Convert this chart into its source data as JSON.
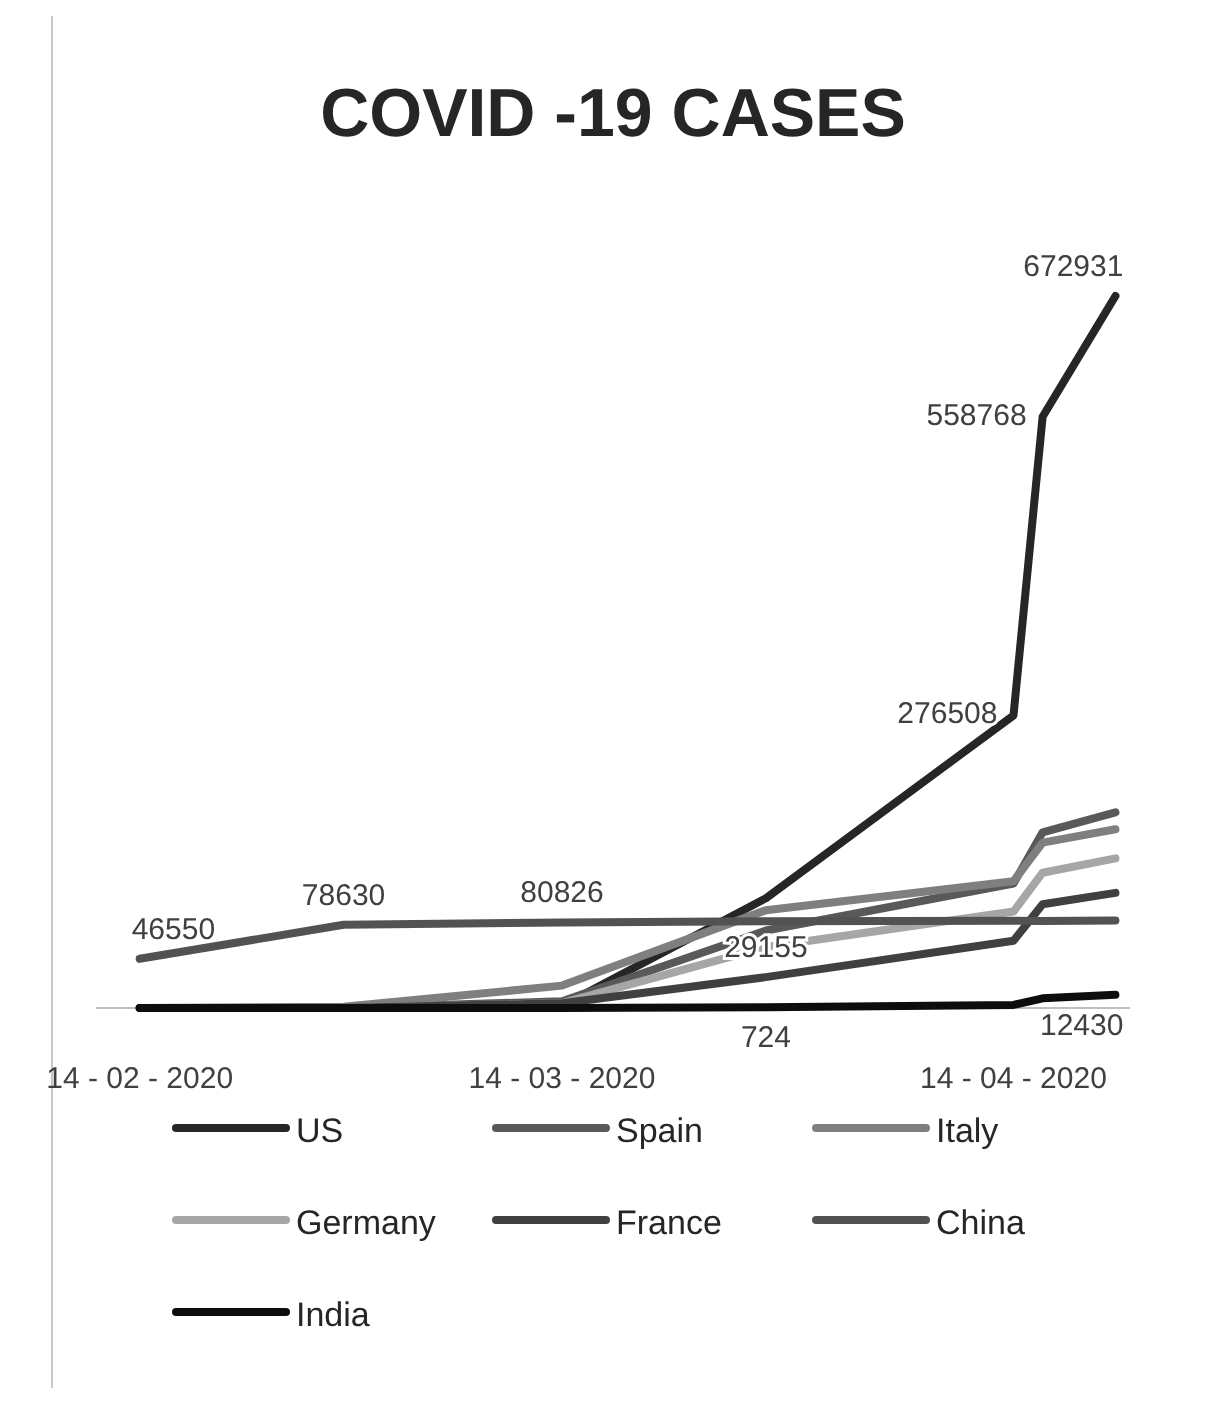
{
  "chart_data": {
    "type": "line",
    "title": "COVID -19 CASES",
    "x": [
      "2020-02-14",
      "2020-02-28",
      "2020-03-14",
      "2020-03-28",
      "2020-04-14",
      "2020-04-16",
      "2020-04-21"
    ],
    "xlim": [
      "2020-02-11",
      "2020-04-22"
    ],
    "xticks": [
      {
        "value": "2020-02-14",
        "label": "14 - 02 - 2020"
      },
      {
        "value": "2020-03-14",
        "label": "14 - 03 - 2020"
      },
      {
        "value": "2020-04-14",
        "label": "14 - 04 - 2020"
      }
    ],
    "series": [
      {
        "name": "US",
        "color": "#262626",
        "values": [
          15,
          62,
          2174,
          103798,
          276508,
          558768,
          672931
        ],
        "value_labels": [
          null,
          null,
          null,
          null,
          "276508",
          "558768",
          "672931"
        ]
      },
      {
        "name": "Spain",
        "color": "#595959",
        "values": [
          2,
          45,
          6391,
          73235,
          117710,
          166019,
          184948
        ]
      },
      {
        "name": "Italy",
        "color": "#7f7f7f",
        "values": [
          3,
          1128,
          21157,
          92472,
          119827,
          156363,
          168941
        ]
      },
      {
        "name": "Germany",
        "color": "#a6a6a6",
        "values": [
          16,
          79,
          4585,
          57695,
          91159,
          127854,
          141397
        ]
      },
      {
        "name": "France",
        "color": "#404040",
        "values": [
          11,
          100,
          4499,
          29155,
          63633,
          98076,
          108847
        ],
        "value_labels": [
          null,
          null,
          null,
          "29155",
          null,
          null,
          null
        ]
      },
      {
        "name": "China",
        "color": "#525252",
        "values": [
          46550,
          78630,
          80826,
          81999,
          82432,
          82249,
          82692
        ],
        "value_labels": [
          "46550",
          "78630",
          "80826",
          null,
          null,
          null,
          null
        ]
      },
      {
        "name": "India",
        "color": "#0d0d0d",
        "values": [
          3,
          3,
          102,
          724,
          2903,
          9152,
          12430
        ],
        "value_labels": [
          null,
          null,
          null,
          "724",
          null,
          null,
          "12430"
        ]
      }
    ],
    "legend": "bottom",
    "line_style": "solid",
    "marker": "none"
  }
}
